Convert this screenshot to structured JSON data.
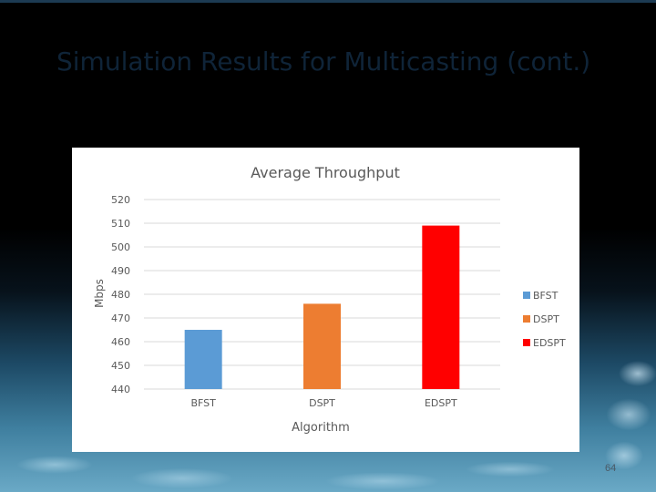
{
  "slide": {
    "title": "Simulation Results for Multicasting (cont.)",
    "page_number": "64"
  },
  "chart_data": {
    "type": "bar",
    "title": "Average Throughput",
    "xlabel": "Algorithm",
    "ylabel": "Mbps",
    "categories": [
      "BFST",
      "DSPT",
      "EDSPT"
    ],
    "values": [
      465,
      476,
      509
    ],
    "colors": [
      "#5b9bd5",
      "#ed7d31",
      "#ff0000"
    ],
    "ylim": [
      440,
      520
    ],
    "yticks": [
      "440",
      "450",
      "460",
      "470",
      "480",
      "490",
      "500",
      "510",
      "520"
    ],
    "legend": {
      "placement": "right",
      "entries": [
        "BFST",
        "DSPT",
        "EDSPT"
      ]
    },
    "grid": true
  }
}
